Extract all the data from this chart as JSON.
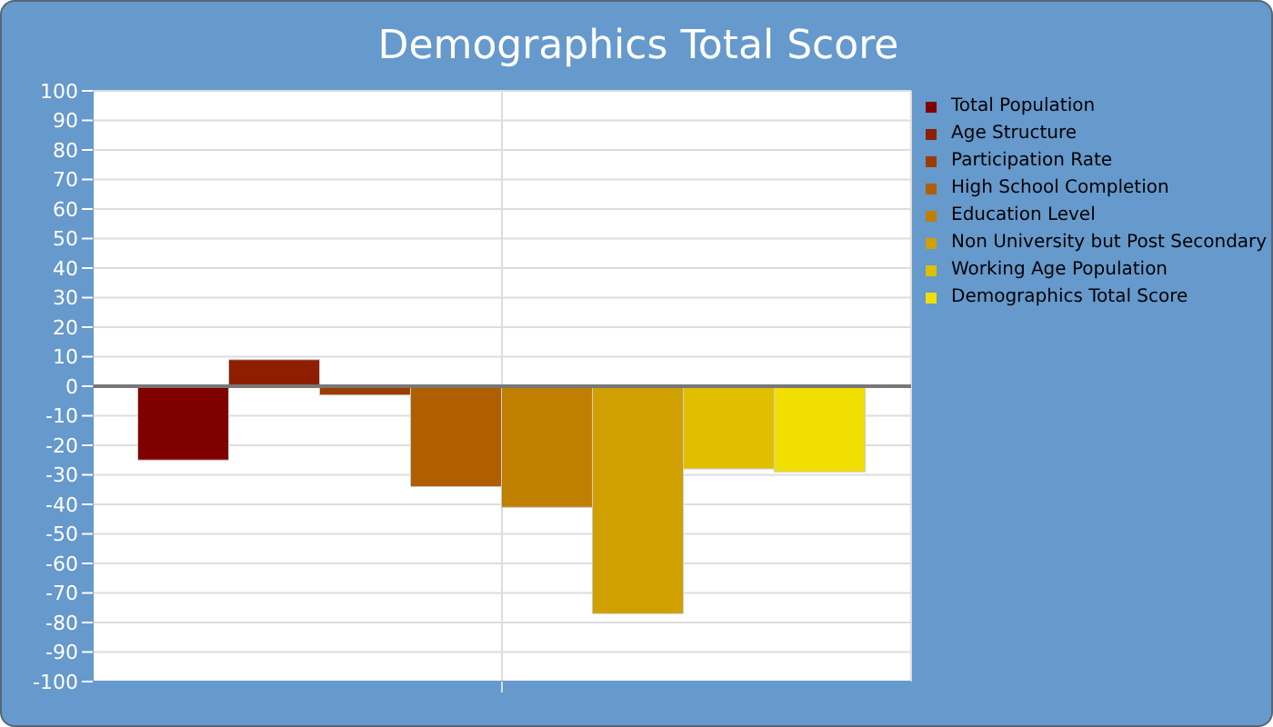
{
  "chart_data": {
    "type": "bar",
    "title": "Demographics Total Score",
    "categories": [
      null
    ],
    "series": [
      {
        "name": "Total Population",
        "color": "#800000",
        "values": [
          -25
        ]
      },
      {
        "name": "Age Structure",
        "color": "#8e1e00",
        "values": [
          9
        ]
      },
      {
        "name": "Participation Rate",
        "color": "#9e3c00",
        "values": [
          -3
        ]
      },
      {
        "name": "High School Completion",
        "color": "#b05f00",
        "values": [
          -34
        ]
      },
      {
        "name": "Education Level",
        "color": "#c07f00",
        "values": [
          -41
        ]
      },
      {
        "name": "Non University but Post Secondary",
        "color": "#d0a000",
        "values": [
          -77
        ]
      },
      {
        "name": "Working Age Population",
        "color": "#e0bf00",
        "values": [
          -28
        ]
      },
      {
        "name": "Demographics Total Score",
        "color": "#f0df00",
        "values": [
          -29
        ]
      }
    ],
    "ylim": [
      -100,
      100
    ],
    "yticks": [
      -100,
      -90,
      -80,
      -70,
      -60,
      -50,
      -40,
      -30,
      -20,
      -10,
      0,
      10,
      20,
      30,
      40,
      50,
      60,
      70,
      80,
      90,
      100
    ],
    "ref_lines": [
      {
        "axis": "y",
        "value": 0,
        "color": "#777777"
      }
    ],
    "grid": true,
    "legend": "top right"
  }
}
